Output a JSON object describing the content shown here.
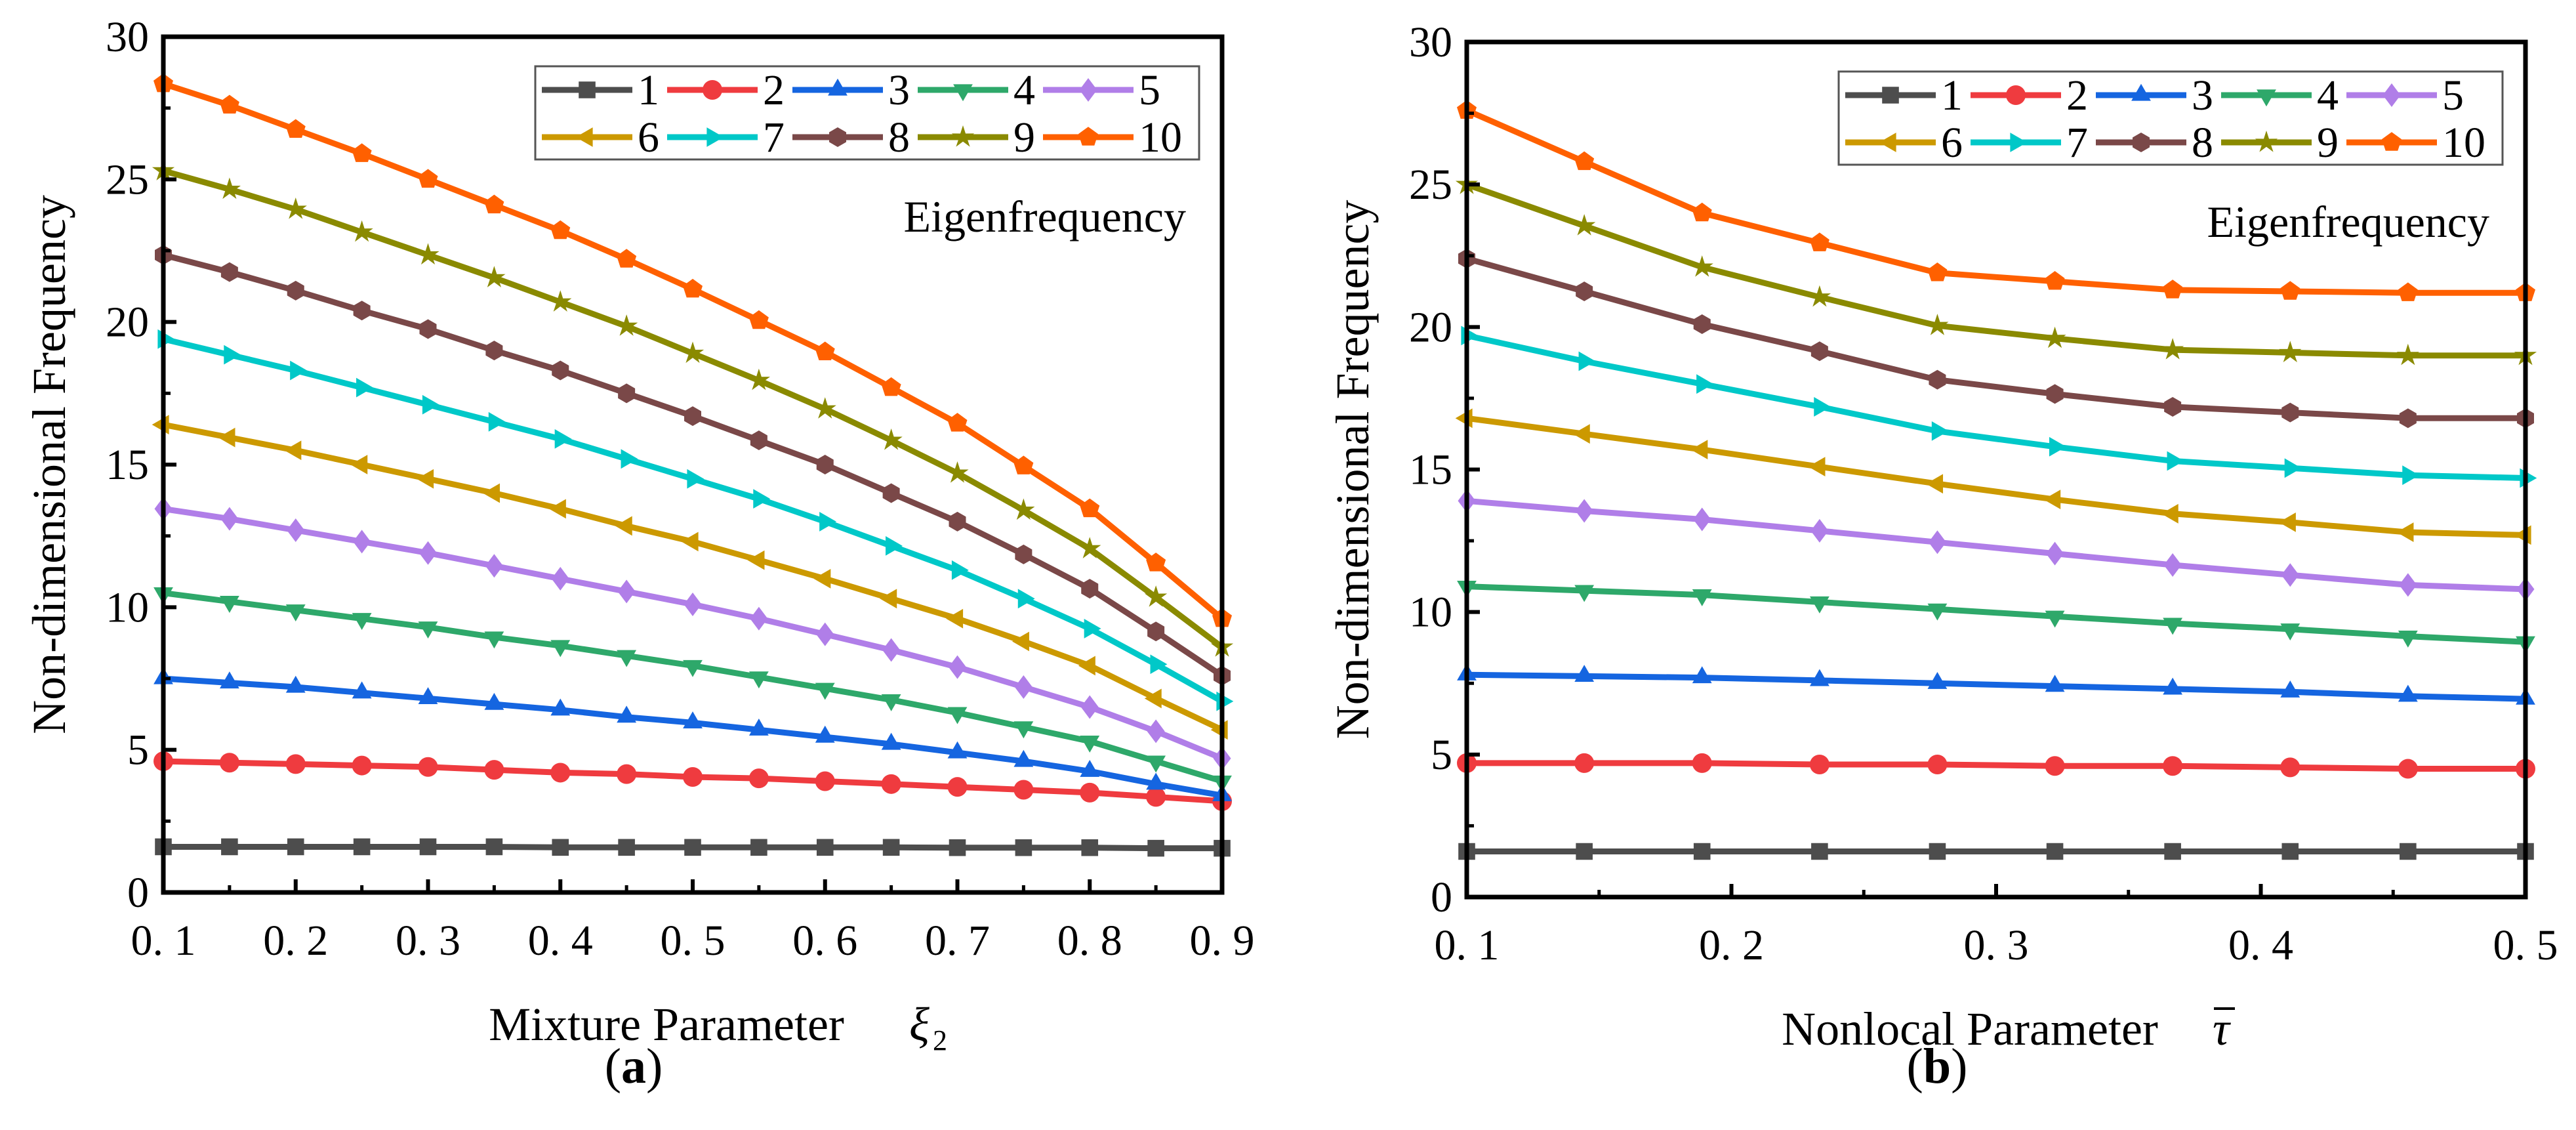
{
  "chart_data": [
    {
      "type": "line",
      "panel_label": "(a)",
      "panel_letter": "a",
      "xlabel": "Mixture Parameter",
      "xlabel_symbol": "ξ",
      "xlabel_symbol_sub": "2",
      "ylabel": "Non-dimensional Frequency",
      "annotation": "Eigenfrequency",
      "legend_placement": "top-right",
      "xlim": [
        0.1,
        0.9
      ],
      "ylim": [
        0,
        30
      ],
      "xticks": [
        0.1,
        0.2,
        0.3,
        0.4,
        0.5,
        0.6,
        0.7,
        0.8,
        0.9
      ],
      "xtick_labels": [
        "0. 1",
        "0. 2",
        "0. 3",
        "0. 4",
        "0. 5",
        "0. 6",
        "0. 7",
        "0. 8",
        "0. 9"
      ],
      "yticks": [
        0,
        5,
        10,
        15,
        20,
        25,
        30
      ],
      "ytick_labels": [
        "0",
        "5",
        "10",
        "15",
        "20",
        "25",
        "30"
      ],
      "x": [
        0.1,
        0.15,
        0.2,
        0.25,
        0.3,
        0.35,
        0.4,
        0.45,
        0.5,
        0.55,
        0.6,
        0.65,
        0.7,
        0.75,
        0.8,
        0.85,
        0.9
      ],
      "series": [
        {
          "name": "1",
          "values": [
            1.6,
            1.6,
            1.6,
            1.6,
            1.6,
            1.6,
            1.58,
            1.58,
            1.58,
            1.58,
            1.58,
            1.58,
            1.57,
            1.57,
            1.57,
            1.55,
            1.55
          ]
        },
        {
          "name": "2",
          "values": [
            4.6,
            4.55,
            4.5,
            4.45,
            4.4,
            4.3,
            4.2,
            4.15,
            4.05,
            4.0,
            3.9,
            3.8,
            3.7,
            3.6,
            3.5,
            3.35,
            3.2
          ]
        },
        {
          "name": "3",
          "values": [
            7.5,
            7.35,
            7.2,
            7.0,
            6.8,
            6.6,
            6.4,
            6.15,
            5.95,
            5.7,
            5.45,
            5.2,
            4.9,
            4.6,
            4.25,
            3.8,
            3.4
          ]
        },
        {
          "name": "4",
          "values": [
            10.5,
            10.2,
            9.9,
            9.6,
            9.3,
            8.95,
            8.65,
            8.3,
            7.95,
            7.55,
            7.15,
            6.75,
            6.3,
            5.8,
            5.3,
            4.6,
            3.9
          ]
        },
        {
          "name": "5",
          "values": [
            13.45,
            13.1,
            12.7,
            12.3,
            11.9,
            11.45,
            11.0,
            10.55,
            10.1,
            9.6,
            9.05,
            8.5,
            7.9,
            7.2,
            6.5,
            5.65,
            4.7
          ]
        },
        {
          "name": "6",
          "values": [
            16.4,
            15.95,
            15.5,
            15.0,
            14.5,
            14.0,
            13.45,
            12.85,
            12.3,
            11.65,
            11.0,
            10.3,
            9.6,
            8.8,
            7.95,
            6.8,
            5.7
          ]
        },
        {
          "name": "7",
          "values": [
            19.4,
            18.85,
            18.3,
            17.7,
            17.1,
            16.5,
            15.9,
            15.2,
            14.5,
            13.8,
            13.0,
            12.15,
            11.3,
            10.3,
            9.25,
            8.0,
            6.7
          ]
        },
        {
          "name": "8",
          "values": [
            22.35,
            21.75,
            21.1,
            20.4,
            19.75,
            19.0,
            18.3,
            17.5,
            16.7,
            15.85,
            15.0,
            14.0,
            13.0,
            11.85,
            10.65,
            9.15,
            7.6
          ]
        },
        {
          "name": "9",
          "values": [
            25.3,
            24.65,
            23.95,
            23.15,
            22.35,
            21.55,
            20.7,
            19.85,
            18.9,
            17.95,
            16.95,
            15.85,
            14.7,
            13.4,
            12.05,
            10.35,
            8.6
          ]
        },
        {
          "name": "10",
          "values": [
            28.35,
            27.6,
            26.75,
            25.9,
            25.0,
            24.1,
            23.2,
            22.2,
            21.15,
            20.05,
            18.95,
            17.7,
            16.45,
            14.95,
            13.45,
            11.55,
            9.6
          ]
        }
      ]
    },
    {
      "type": "line",
      "panel_label": "(b)",
      "panel_letter": "b",
      "xlabel": "Nonlocal Parameter",
      "xlabel_symbol": "τ",
      "xlabel_symbol_sub": "",
      "ylabel": "Non-dimensional Frequency",
      "annotation": "Eigenfrequency",
      "legend_placement": "top-right",
      "xlim": [
        0.1,
        0.5
      ],
      "ylim": [
        0,
        30
      ],
      "xticks": [
        0.1,
        0.2,
        0.3,
        0.4,
        0.5
      ],
      "xtick_labels": [
        "0. 1",
        "0. 2",
        "0. 3",
        "0. 4",
        "0. 5"
      ],
      "yticks": [
        0,
        5,
        10,
        15,
        20,
        25,
        30
      ],
      "ytick_labels": [
        "0",
        "5",
        "10",
        "15",
        "20",
        "25",
        "30"
      ],
      "x": [
        0.1,
        0.1444,
        0.1889,
        0.2333,
        0.2778,
        0.3222,
        0.3667,
        0.4111,
        0.4556,
        0.5
      ],
      "series": [
        {
          "name": "1",
          "values": [
            1.6,
            1.6,
            1.6,
            1.6,
            1.6,
            1.6,
            1.6,
            1.6,
            1.6,
            1.6
          ]
        },
        {
          "name": "2",
          "values": [
            4.7,
            4.7,
            4.7,
            4.65,
            4.65,
            4.6,
            4.6,
            4.55,
            4.5,
            4.5
          ]
        },
        {
          "name": "3",
          "values": [
            7.8,
            7.75,
            7.7,
            7.6,
            7.5,
            7.4,
            7.3,
            7.2,
            7.05,
            6.95
          ]
        },
        {
          "name": "4",
          "values": [
            10.9,
            10.75,
            10.6,
            10.35,
            10.1,
            9.85,
            9.6,
            9.4,
            9.15,
            8.95
          ]
        },
        {
          "name": "5",
          "values": [
            13.9,
            13.55,
            13.25,
            12.85,
            12.45,
            12.05,
            11.65,
            11.3,
            10.95,
            10.8
          ]
        },
        {
          "name": "6",
          "values": [
            16.8,
            16.25,
            15.7,
            15.1,
            14.5,
            13.95,
            13.45,
            13.15,
            12.8,
            12.7
          ]
        },
        {
          "name": "7",
          "values": [
            19.7,
            18.8,
            18.0,
            17.2,
            16.35,
            15.8,
            15.3,
            15.05,
            14.8,
            14.7
          ]
        },
        {
          "name": "8",
          "values": [
            22.4,
            21.25,
            20.1,
            19.15,
            18.15,
            17.65,
            17.2,
            17.0,
            16.8,
            16.8
          ]
        },
        {
          "name": "9",
          "values": [
            25.0,
            23.55,
            22.1,
            21.05,
            20.05,
            19.6,
            19.2,
            19.1,
            19.0,
            19.0
          ]
        },
        {
          "name": "10",
          "values": [
            27.6,
            25.8,
            24.0,
            22.95,
            21.9,
            21.6,
            21.3,
            21.25,
            21.2,
            21.2
          ]
        }
      ]
    }
  ],
  "series_style": [
    {
      "color": "#4d4d4d",
      "marker": "square"
    },
    {
      "color": "#ef3b3f",
      "marker": "circle"
    },
    {
      "color": "#1565e0",
      "marker": "triangle-up"
    },
    {
      "color": "#2ea86a",
      "marker": "triangle-down"
    },
    {
      "color": "#b07ee8",
      "marker": "diamond"
    },
    {
      "color": "#cc9900",
      "marker": "triangle-left"
    },
    {
      "color": "#00c8c8",
      "marker": "triangle-right"
    },
    {
      "color": "#7a4848",
      "marker": "hexagon"
    },
    {
      "color": "#8a8a00",
      "marker": "star"
    },
    {
      "color": "#ff6000",
      "marker": "pentagon"
    }
  ]
}
